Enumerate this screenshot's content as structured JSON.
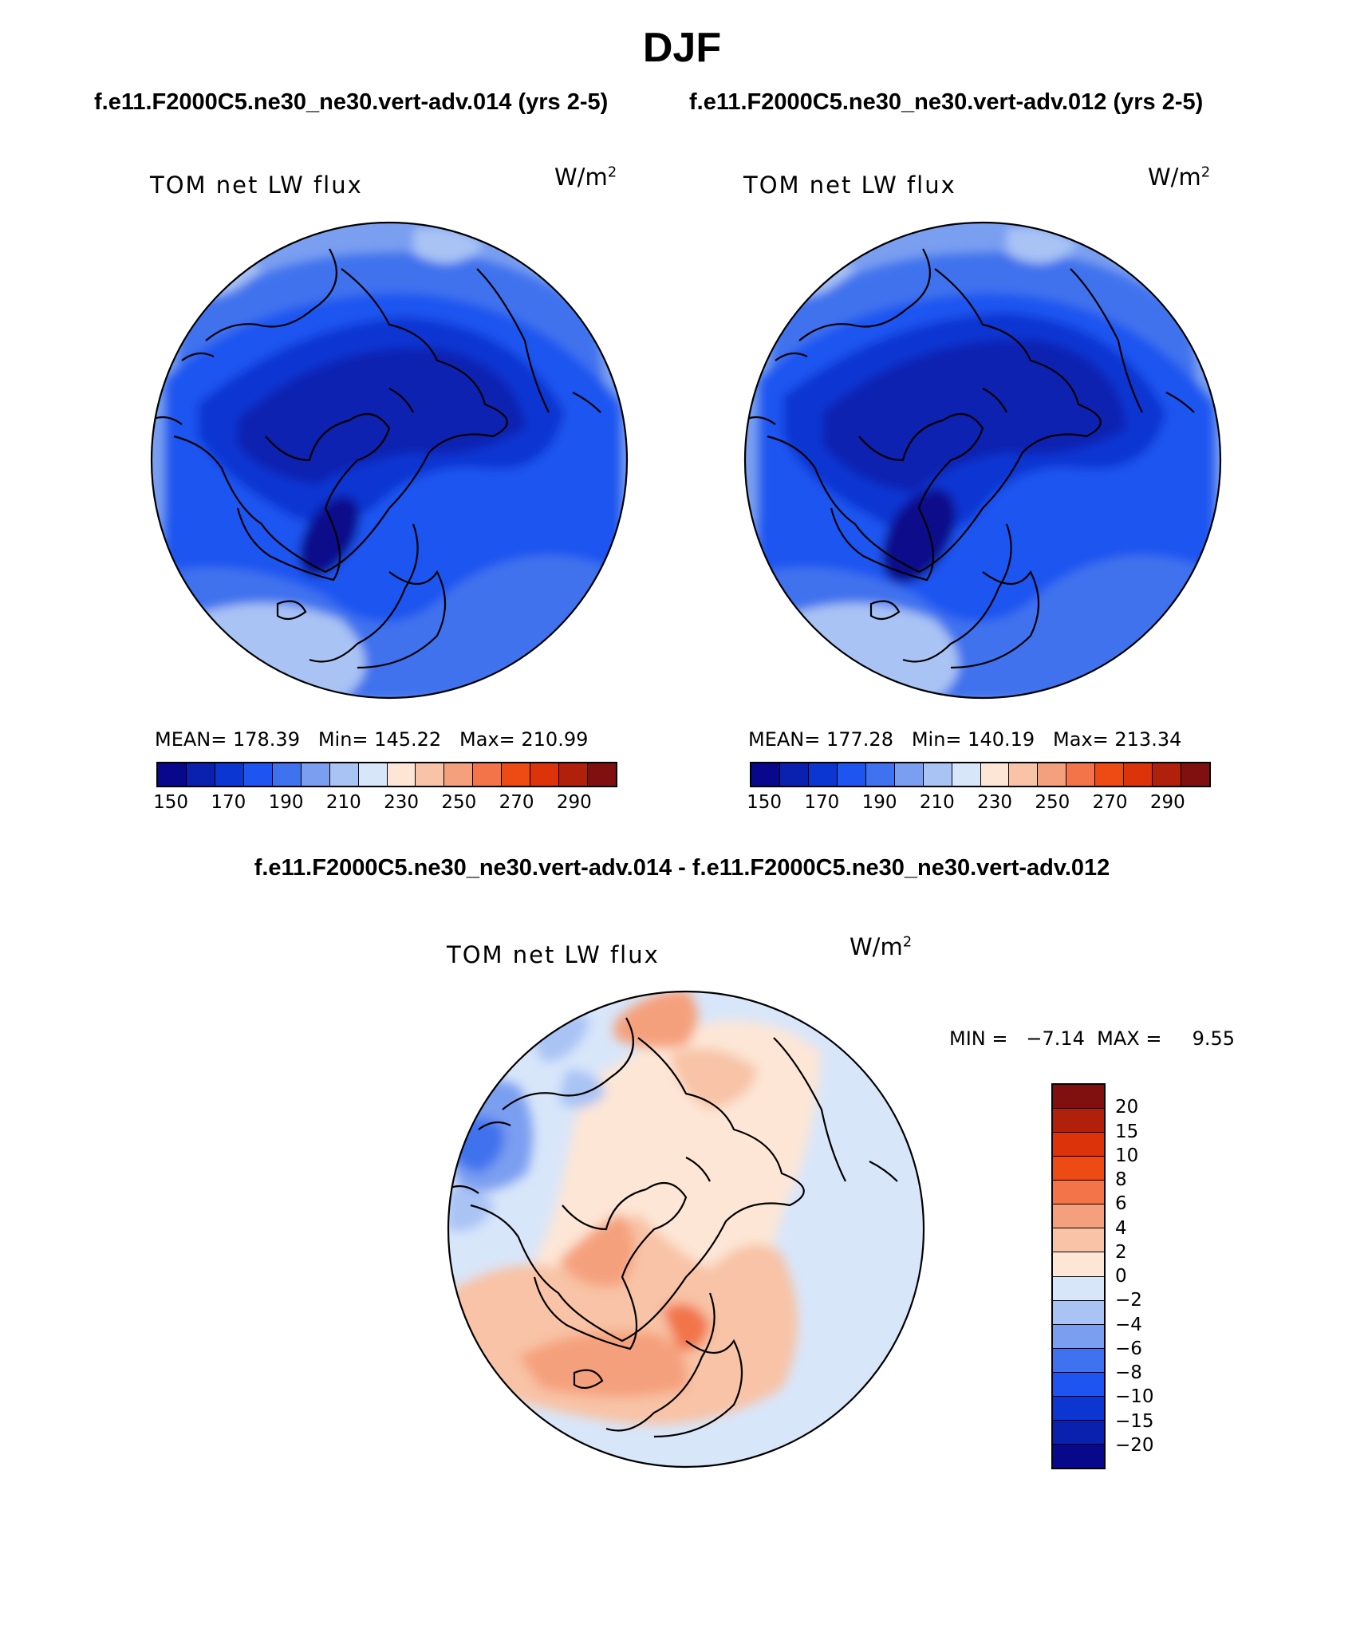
{
  "figure_title": "DJF",
  "case_labels": [
    "f.e11.F2000C5.ne30_ne30.vert-adv.014 (yrs 2-5)",
    "f.e11.F2000C5.ne30_ne30.vert-adv.012 (yrs 2-5)"
  ],
  "difference_label": "f.e11.F2000C5.ne30_ne30.vert-adv.014 - f.e11.F2000C5.ne30_ne30.vert-adv.012",
  "panels": [
    {
      "title": "TOM net LW flux",
      "unit_base": "W/m",
      "unit_exp": "2",
      "stats": "MEAN= 178.39   Min= 145.22   Max= 210.99"
    },
    {
      "title": "TOM net LW flux",
      "unit_base": "W/m",
      "unit_exp": "2",
      "stats": "MEAN= 177.28   Min= 140.19   Max= 213.34"
    },
    {
      "title": "TOM net LW flux",
      "unit_base": "W/m",
      "unit_exp": "2",
      "stats": "MIN =   −7.14  MAX =     9.55"
    }
  ],
  "colorbar_main": {
    "colors": [
      "#08088c",
      "#0a21b0",
      "#0b36d2",
      "#1e55f0",
      "#3f72ee",
      "#7a9ef0",
      "#a9c3f4",
      "#d8e6fa",
      "#fde6d6",
      "#f8c3a6",
      "#f5a07c",
      "#f27448",
      "#ee4a14",
      "#dc330a",
      "#b0200a",
      "#801010"
    ],
    "labels": [
      "150",
      "170",
      "190",
      "210",
      "230",
      "250",
      "270",
      "290"
    ]
  },
  "colorbar_diff": {
    "colors": [
      "#801010",
      "#b0200a",
      "#dc330a",
      "#ee4a14",
      "#f27448",
      "#f5a07c",
      "#f8c3a6",
      "#fde6d6",
      "#d8e6fa",
      "#a9c3f4",
      "#7a9ef0",
      "#3f72ee",
      "#1e55f0",
      "#0b36d2",
      "#0a21b0",
      "#08088c"
    ],
    "labels": [
      "20",
      "15",
      "10",
      "8",
      "6",
      "4",
      "2",
      "0",
      "−2",
      "−4",
      "−6",
      "−8",
      "−10",
      "−15",
      "−20"
    ]
  }
}
